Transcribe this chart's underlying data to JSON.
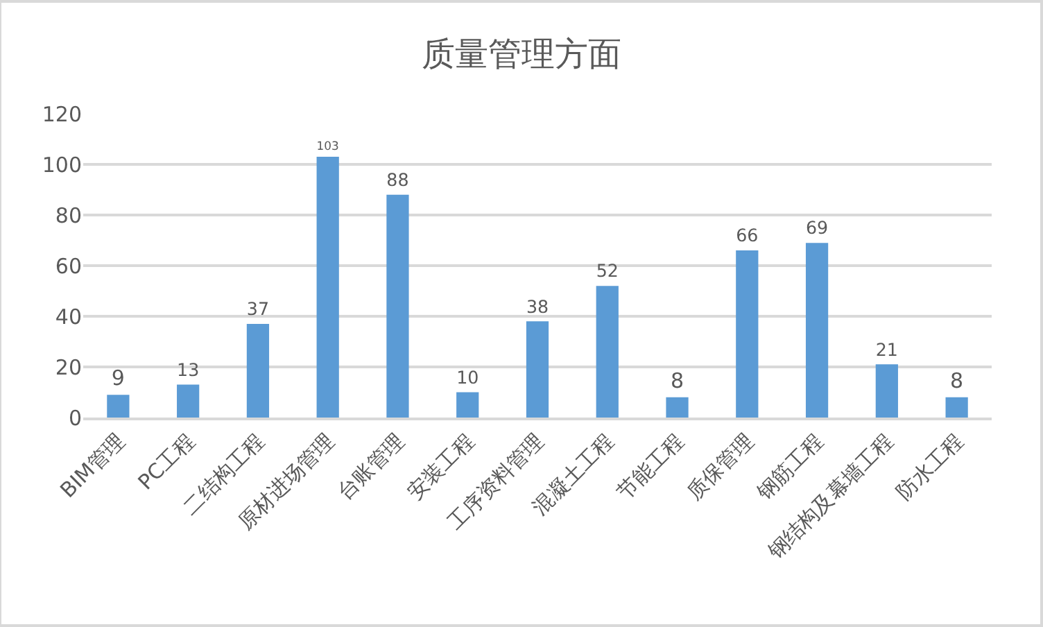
{
  "chart_data": {
    "type": "bar",
    "title": "质量管理方面",
    "categories": [
      "BIM管理",
      "PC工程",
      "二结构工程",
      "原材进场管理",
      "台账管理",
      "安装工程",
      "工序资料管理",
      "混凝土工程",
      "节能工程",
      "质保管理",
      "钢筋工程",
      "钢结构及幕墙工程",
      "防水工程"
    ],
    "values": [
      9,
      13,
      37,
      103,
      88,
      10,
      38,
      52,
      8,
      66,
      69,
      21,
      8
    ],
    "color": "#5b9bd5",
    "ylim": [
      0,
      120
    ],
    "yticks": [
      0,
      20,
      40,
      60,
      80,
      100,
      120
    ],
    "grid": "y",
    "data_labels": true
  }
}
